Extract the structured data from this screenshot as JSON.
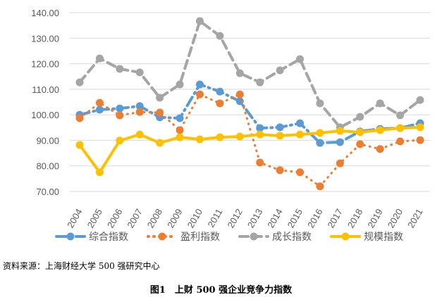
{
  "chart_data": {
    "type": "line",
    "title": "",
    "xlabel": "",
    "ylabel": "",
    "ylim": [
      70,
      140
    ],
    "yticks": [
      "70.00",
      "80.00",
      "90.00",
      "100.00",
      "110.00",
      "120.00",
      "130.00",
      "140.00"
    ],
    "grid": true,
    "legend_placement": "bottom",
    "x": [
      "2004",
      "2005",
      "2006",
      "2007",
      "2008",
      "2009",
      "2010",
      "2011",
      "2012",
      "2013",
      "2014",
      "2015",
      "2016",
      "2017",
      "2018",
      "2019",
      "2020",
      "2021"
    ],
    "series": [
      {
        "name": "综合指数",
        "color": "#5B9BD5",
        "style": "dash-dot",
        "values": [
          100.0,
          102.0,
          102.5,
          103.4,
          99.0,
          98.7,
          111.9,
          109.1,
          105.3,
          94.8,
          95.1,
          96.7,
          89.0,
          89.3,
          93.5,
          94.5,
          94.8,
          96.7
        ]
      },
      {
        "name": "盈利指数",
        "color": "#ED7D31",
        "style": "dotted",
        "values": [
          98.7,
          104.7,
          99.8,
          101.1,
          100.9,
          94.0,
          108.0,
          104.5,
          108.0,
          81.3,
          78.3,
          77.5,
          72.0,
          81.0,
          88.5,
          86.6,
          89.6,
          90.1
        ]
      },
      {
        "name": "成长指数",
        "color": "#A5A5A5",
        "style": "dashed",
        "values": [
          112.7,
          122.1,
          118.0,
          116.6,
          106.7,
          111.9,
          136.7,
          130.9,
          116.3,
          112.7,
          117.4,
          121.8,
          104.5,
          95.1,
          99.2,
          104.5,
          99.8,
          105.8
        ]
      },
      {
        "name": "规模指数",
        "color": "#FFC000",
        "style": "solid",
        "values": [
          88.2,
          77.5,
          89.9,
          92.3,
          89.0,
          91.2,
          90.4,
          91.2,
          91.5,
          92.3,
          91.8,
          92.3,
          92.9,
          93.7,
          93.2,
          94.0,
          94.8,
          95.1
        ]
      }
    ]
  },
  "source": "资料来源：上海财经大学 500 强研究中心",
  "caption": "图1　上财 500 强企业竞争力指数"
}
